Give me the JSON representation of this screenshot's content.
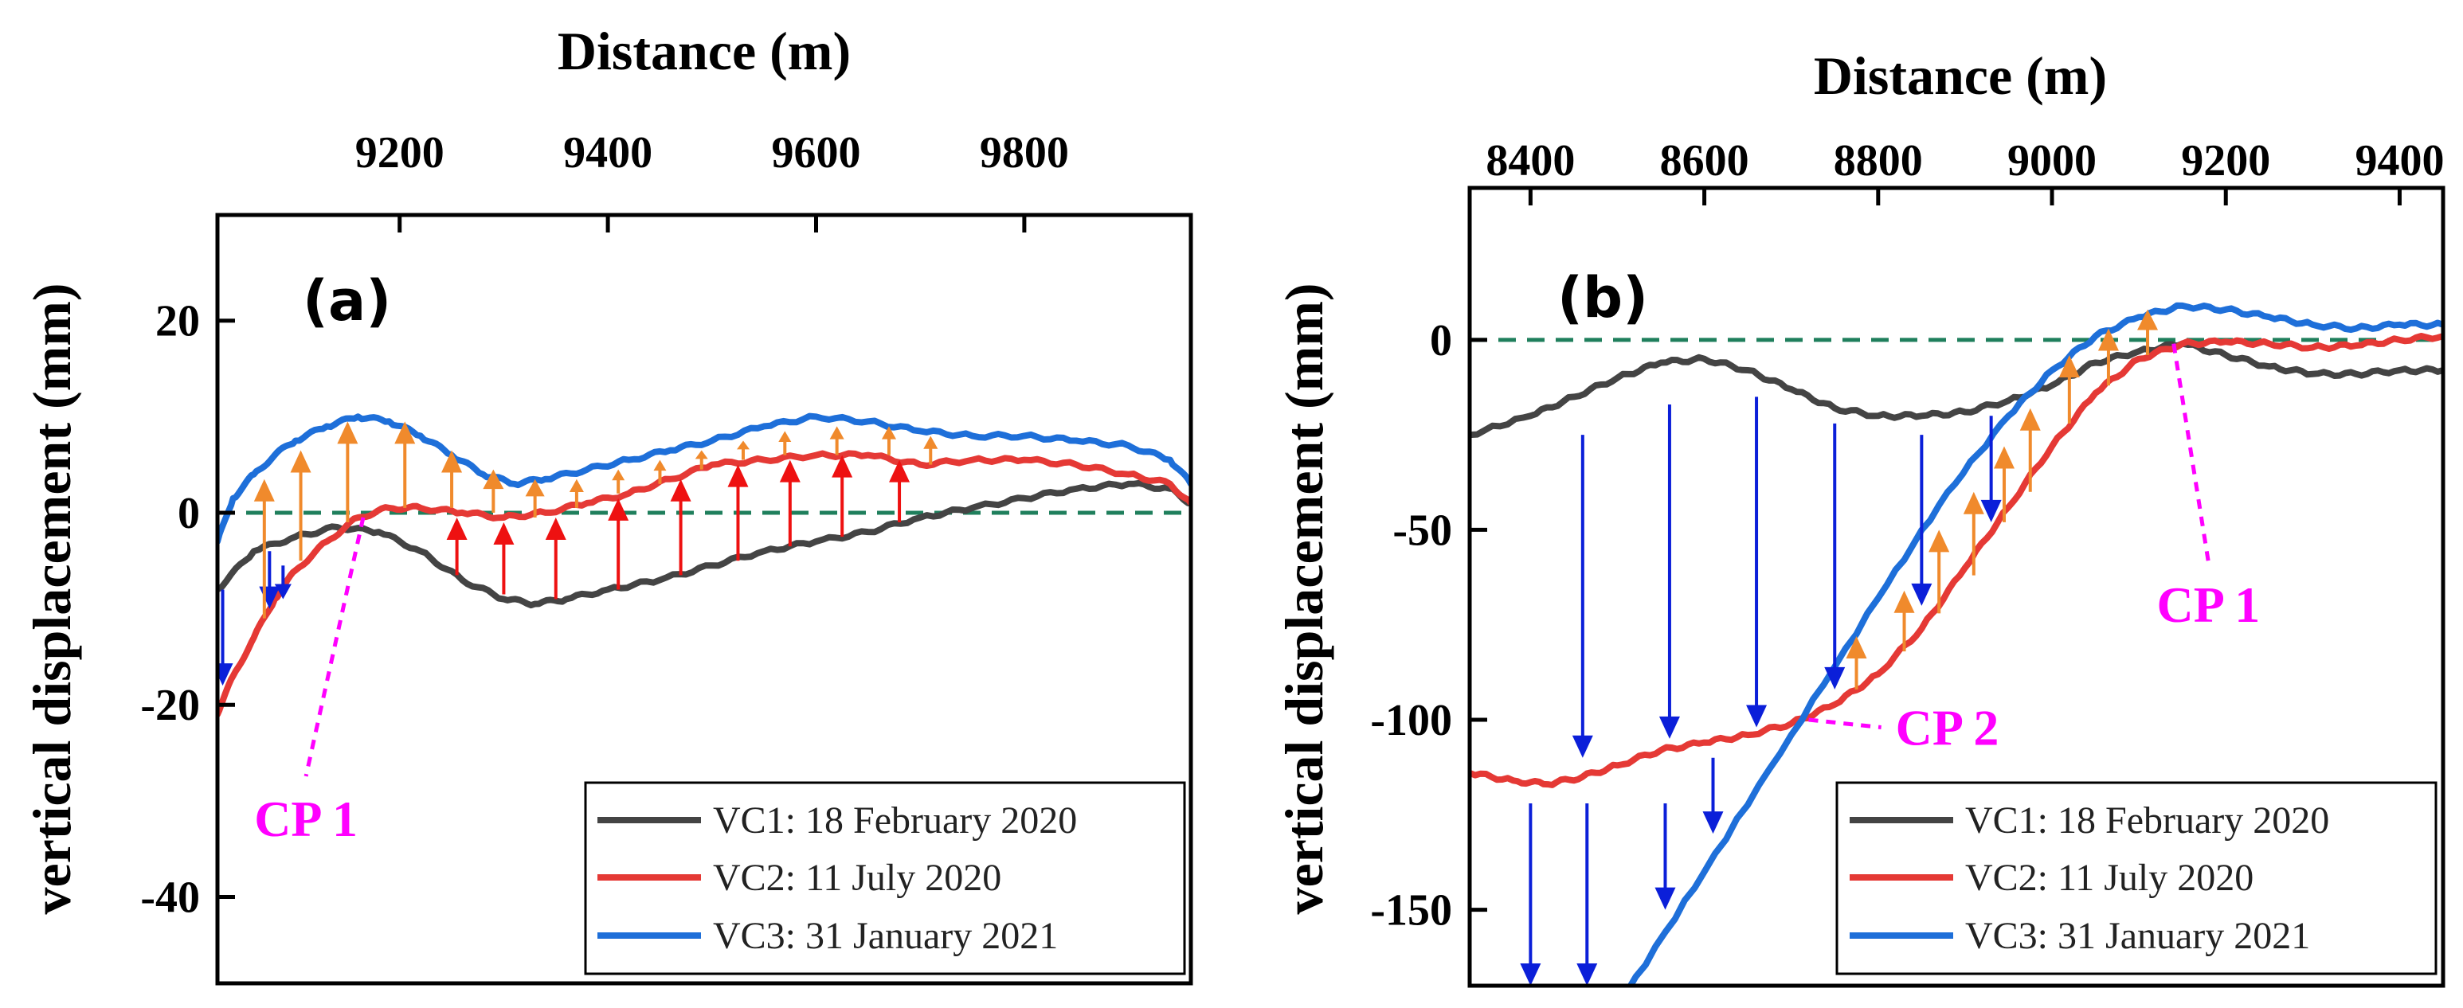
{
  "colors": {
    "vc1": "#444444",
    "vc2": "#e53935",
    "vc3": "#1e6fd9",
    "zero": "#1f7f5c",
    "cp": "#ff00ff",
    "arrow_down": "#0b1fd9",
    "arrow_up_orange": "#f08a2c",
    "arrow_up_red": "#ee1111"
  },
  "chart_data": [
    {
      "type": "line",
      "panel_label": "(a)",
      "title": "Distance (m)",
      "xlabel": "Distance (m)",
      "ylabel": "vertical displacement (mm)",
      "xlim": [
        9025,
        9960
      ],
      "ylim": [
        -49,
        31
      ],
      "xticks": [
        9200,
        9400,
        9600,
        9800
      ],
      "xtick_labels": [
        "9200",
        "9400",
        "9600",
        "9800"
      ],
      "yticks": [
        20,
        0,
        -20,
        -40
      ],
      "ytick_labels": [
        "20",
        "0",
        "-20",
        "-40"
      ],
      "zero_line": true,
      "legend": [
        "VC1: 18 February 2020",
        "VC2: 11 July 2020",
        "VC3: 31 January 2021"
      ],
      "legend_position": "bottom-right",
      "annotations": [
        {
          "text": "CP 1",
          "x": 9165,
          "y": -0.5,
          "text_x": 9110,
          "text_y": -32
        }
      ],
      "series": [
        {
          "name": "VC1: 18 February 2020",
          "color_key": "vc1",
          "x": [
            9025,
            9060,
            9100,
            9140,
            9180,
            9220,
            9260,
            9300,
            9330,
            9360,
            9400,
            9450,
            9500,
            9550,
            9600,
            9650,
            9700,
            9750,
            9800,
            9850,
            9900,
            9940,
            9960
          ],
          "y": [
            -8,
            -4,
            -2.5,
            -1.5,
            -2,
            -4,
            -7,
            -9,
            -9.5,
            -9,
            -8,
            -7,
            -5.5,
            -4,
            -3,
            -2,
            -0.5,
            0.5,
            1.5,
            2.5,
            3,
            2.5,
            1
          ]
        },
        {
          "name": "VC2: 11 July 2020",
          "color_key": "vc2",
          "x": [
            9025,
            9040,
            9060,
            9080,
            9100,
            9130,
            9160,
            9190,
            9220,
            9260,
            9300,
            9340,
            9380,
            9420,
            9460,
            9500,
            9550,
            9600,
            9650,
            9700,
            9750,
            9800,
            9850,
            9900,
            9940,
            9960
          ],
          "y": [
            -21,
            -17,
            -13,
            -9,
            -6,
            -3,
            -0.5,
            0.5,
            0.5,
            0,
            -0.5,
            0,
            1,
            2,
            3.5,
            5,
            5.5,
            6,
            6,
            5,
            5.5,
            5.5,
            5,
            4,
            3,
            1
          ]
        },
        {
          "name": "VC3: 31 January 2021",
          "color_key": "vc3",
          "x": [
            9025,
            9040,
            9060,
            9080,
            9100,
            9130,
            9160,
            9190,
            9220,
            9250,
            9280,
            9310,
            9340,
            9380,
            9420,
            9460,
            9500,
            9550,
            9600,
            9650,
            9700,
            9750,
            9800,
            9850,
            9900,
            9940,
            9960
          ],
          "y": [
            -3,
            1.5,
            4,
            6,
            7.5,
            9,
            10,
            9.5,
            8,
            6,
            4,
            3,
            3.5,
            4.5,
            5.5,
            6.5,
            7.5,
            9,
            10,
            9.5,
            8.5,
            8,
            8,
            7.5,
            7,
            5.5,
            3
          ]
        }
      ],
      "displacement_arrows": [
        {
          "x": 9030,
          "from": -8,
          "to": -18,
          "color_key": "arrow_down"
        },
        {
          "x": 9075,
          "from": -4,
          "to": -10,
          "color_key": "arrow_down"
        },
        {
          "x": 9088,
          "from": -5.5,
          "to": -9,
          "color_key": "arrow_down"
        },
        {
          "x": 9070,
          "from": -11,
          "to": 3.5,
          "color_key": "arrow_up_orange"
        },
        {
          "x": 9105,
          "from": -5,
          "to": 6.5,
          "color_key": "arrow_up_orange"
        },
        {
          "x": 9150,
          "from": -1,
          "to": 9.5,
          "color_key": "arrow_up_orange"
        },
        {
          "x": 9205,
          "from": 0.5,
          "to": 9.5,
          "color_key": "arrow_up_orange"
        },
        {
          "x": 9250,
          "from": 0.5,
          "to": 6.5,
          "color_key": "arrow_up_orange"
        },
        {
          "x": 9290,
          "from": 0,
          "to": 4.5,
          "color_key": "arrow_up_orange"
        },
        {
          "x": 9330,
          "from": -0.5,
          "to": 3.5,
          "color_key": "arrow_up_orange"
        },
        {
          "x": 9370,
          "from": 0.5,
          "to": 3.5,
          "color_key": "arrow_up_orange"
        },
        {
          "x": 9410,
          "from": 2,
          "to": 4.5,
          "color_key": "arrow_up_orange"
        },
        {
          "x": 9450,
          "from": 3,
          "to": 5.5,
          "color_key": "arrow_up_orange"
        },
        {
          "x": 9490,
          "from": 4.5,
          "to": 6.5,
          "color_key": "arrow_up_orange"
        },
        {
          "x": 9530,
          "from": 5.5,
          "to": 7.5,
          "color_key": "arrow_up_orange"
        },
        {
          "x": 9570,
          "from": 6,
          "to": 8.5,
          "color_key": "arrow_up_orange"
        },
        {
          "x": 9620,
          "from": 6,
          "to": 9,
          "color_key": "arrow_up_orange"
        },
        {
          "x": 9670,
          "from": 6,
          "to": 9,
          "color_key": "arrow_up_orange"
        },
        {
          "x": 9710,
          "from": 5,
          "to": 8,
          "color_key": "arrow_up_orange"
        },
        {
          "x": 9255,
          "from": -6.5,
          "to": -0.5,
          "color_key": "arrow_up_red"
        },
        {
          "x": 9300,
          "from": -8.5,
          "to": -1,
          "color_key": "arrow_up_red"
        },
        {
          "x": 9350,
          "from": -9,
          "to": -0.5,
          "color_key": "arrow_up_red"
        },
        {
          "x": 9410,
          "from": -8,
          "to": 1.5,
          "color_key": "arrow_up_red"
        },
        {
          "x": 9470,
          "from": -6.5,
          "to": 3.5,
          "color_key": "arrow_up_red"
        },
        {
          "x": 9525,
          "from": -5,
          "to": 5,
          "color_key": "arrow_up_red"
        },
        {
          "x": 9575,
          "from": -3.5,
          "to": 5.5,
          "color_key": "arrow_up_red"
        },
        {
          "x": 9625,
          "from": -2.5,
          "to": 6,
          "color_key": "arrow_up_red"
        },
        {
          "x": 9680,
          "from": -1,
          "to": 5.5,
          "color_key": "arrow_up_red"
        }
      ]
    },
    {
      "type": "line",
      "panel_label": "(b)",
      "title": "Distance (m)",
      "xlabel": "Distance (m)",
      "ylabel": "vertical displacement (mm)",
      "xlim": [
        8330,
        9450
      ],
      "ylim": [
        -170,
        40
      ],
      "xticks": [
        8400,
        8600,
        8800,
        9000,
        9200,
        9400
      ],
      "xtick_labels": [
        "8400",
        "8600",
        "8800",
        "9000",
        "9200",
        "9400"
      ],
      "yticks": [
        0,
        -50,
        -100,
        -150
      ],
      "ytick_labels": [
        "0",
        "-50",
        "-100",
        "-150"
      ],
      "zero_line": true,
      "legend": [
        "VC1: 18 February 2020",
        "VC2: 11 July 2020",
        "VC3: 31 January 2021"
      ],
      "legend_position": "bottom-right",
      "annotations": [
        {
          "text": "CP 1",
          "x": 9140,
          "y": -1,
          "text_x": 9180,
          "text_y": -70
        },
        {
          "text": "CP 2",
          "x": 8720,
          "y": -100,
          "text_x": 8820,
          "text_y": -102
        }
      ],
      "series": [
        {
          "name": "VC1: 18 February 2020",
          "color_key": "vc1",
          "x": [
            8330,
            8400,
            8450,
            8500,
            8550,
            8600,
            8650,
            8700,
            8750,
            8800,
            8850,
            8900,
            8950,
            9000,
            9050,
            9100,
            9150,
            9200,
            9250,
            9300,
            9350,
            9400,
            9450
          ],
          "y": [
            -25,
            -20,
            -15,
            -10,
            -6,
            -5,
            -8,
            -13,
            -18,
            -20,
            -20,
            -19,
            -16,
            -12,
            -6,
            -3,
            -1,
            -4,
            -7,
            -9,
            -9,
            -8,
            -8
          ]
        },
        {
          "name": "VC2: 11 July 2020",
          "color_key": "vc2",
          "x": [
            8330,
            8380,
            8420,
            8460,
            8500,
            8550,
            8600,
            8650,
            8700,
            8750,
            8800,
            8850,
            8900,
            8950,
            9000,
            9050,
            9100,
            9150,
            9200,
            9250,
            9300,
            9350,
            9400,
            9450
          ],
          "y": [
            -114,
            -116,
            -117,
            -115,
            -112,
            -108,
            -106,
            -104,
            -101,
            -96,
            -88,
            -76,
            -60,
            -44,
            -28,
            -14,
            -5,
            -1,
            -0.5,
            -1,
            -2,
            -1.5,
            0,
            1
          ]
        },
        {
          "name": "VC3: 31 January 2021",
          "color_key": "vc3",
          "x": [
            8510,
            8600,
            8700,
            8800,
            8880,
            8950,
            9000,
            9050,
            9100,
            9150,
            9200,
            9250,
            9300,
            9350,
            9400,
            9450
          ],
          "y": [
            -172,
            -140,
            -104,
            -68,
            -40,
            -20,
            -8,
            1,
            6,
            9,
            8,
            6,
            4,
            3,
            4,
            4
          ]
        }
      ],
      "displacement_arrows": [
        {
          "x": 8460,
          "from": -25,
          "to": -110,
          "color_key": "arrow_down"
        },
        {
          "x": 8560,
          "from": -17,
          "to": -105,
          "color_key": "arrow_down"
        },
        {
          "x": 8660,
          "from": -15,
          "to": -102,
          "color_key": "arrow_down"
        },
        {
          "x": 8750,
          "from": -22,
          "to": -92,
          "color_key": "arrow_down"
        },
        {
          "x": 8850,
          "from": -25,
          "to": -70,
          "color_key": "arrow_down"
        },
        {
          "x": 8930,
          "from": -20,
          "to": -48,
          "color_key": "arrow_down"
        },
        {
          "x": 8400,
          "from": -122,
          "to": -170,
          "color_key": "arrow_down"
        },
        {
          "x": 8465,
          "from": -122,
          "to": -170,
          "color_key": "arrow_down"
        },
        {
          "x": 8555,
          "from": -122,
          "to": -150,
          "color_key": "arrow_down"
        },
        {
          "x": 8610,
          "from": -110,
          "to": -130,
          "color_key": "arrow_down"
        },
        {
          "x": 8775,
          "from": -92,
          "to": -78,
          "color_key": "arrow_up_orange"
        },
        {
          "x": 8830,
          "from": -82,
          "to": -66,
          "color_key": "arrow_up_orange"
        },
        {
          "x": 8870,
          "from": -72,
          "to": -50,
          "color_key": "arrow_up_orange"
        },
        {
          "x": 8910,
          "from": -62,
          "to": -40,
          "color_key": "arrow_up_orange"
        },
        {
          "x": 8945,
          "from": -48,
          "to": -28,
          "color_key": "arrow_up_orange"
        },
        {
          "x": 8975,
          "from": -40,
          "to": -18,
          "color_key": "arrow_up_orange"
        },
        {
          "x": 9020,
          "from": -22,
          "to": -4,
          "color_key": "arrow_up_orange"
        },
        {
          "x": 9065,
          "from": -12,
          "to": 3,
          "color_key": "arrow_up_orange"
        },
        {
          "x": 9110,
          "from": -4,
          "to": 8,
          "color_key": "arrow_up_orange"
        }
      ]
    }
  ]
}
